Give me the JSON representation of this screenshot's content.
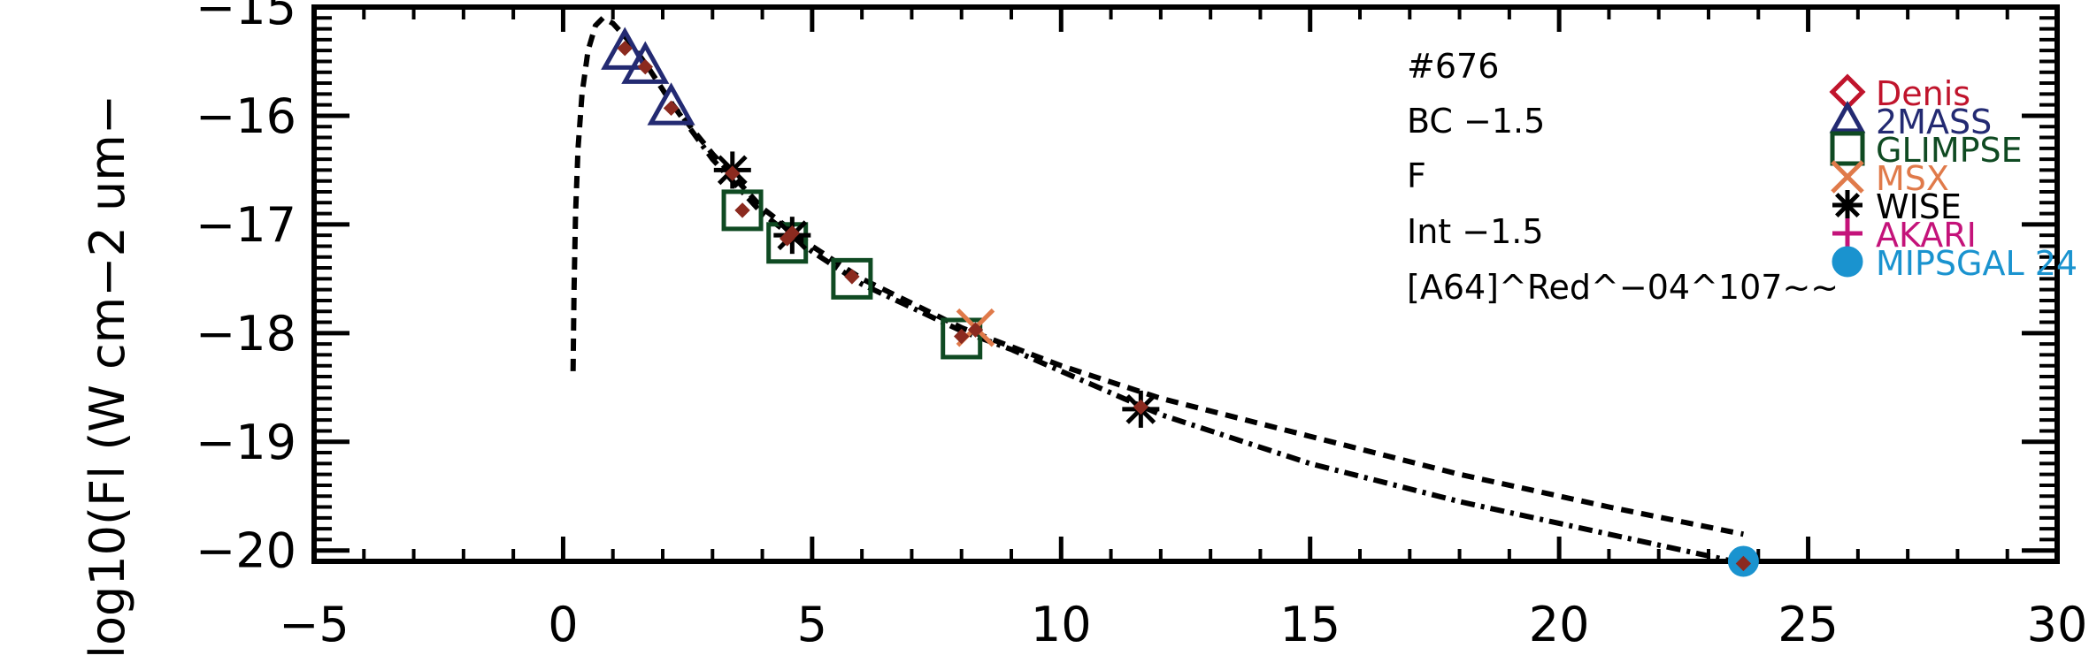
{
  "chart_data": {
    "type": "scatter",
    "title": "",
    "xlabel": "",
    "ylabel": "log10(Fl (W cm−2 um−",
    "xlim": [
      -5,
      30
    ],
    "ylim": [
      -20.1,
      -15.0
    ],
    "x_ticks": [
      -5,
      0,
      5,
      10,
      15,
      20,
      25,
      30
    ],
    "x_tick_labels": [
      "−5",
      "0",
      "5",
      "10",
      "15",
      "20",
      "25",
      "30"
    ],
    "y_ticks": [
      -15,
      -16,
      -17,
      -18,
      -19,
      -20
    ],
    "y_tick_labels": [
      "−15",
      "−16",
      "−17",
      "−18",
      "−19",
      "−20"
    ],
    "grid": false,
    "legend_position": "top-right",
    "annotations": [
      "#676",
      "BC −1.5",
      "F",
      "Int −1.5",
      "[A64]^Red^−04^107~~"
    ],
    "legend": [
      {
        "name": "Denis",
        "marker": "diamond",
        "color": "#c0142c"
      },
      {
        "name": "2MASS",
        "marker": "triangle",
        "color": "#232a72"
      },
      {
        "name": "GLIMPSE",
        "marker": "square",
        "color": "#0f4a22"
      },
      {
        "name": "MSX",
        "marker": "x",
        "color": "#e07a4a"
      },
      {
        "name": "WISE",
        "marker": "asterisk",
        "color": "#000000"
      },
      {
        "name": "AKARI",
        "marker": "plus",
        "color": "#c4137a"
      },
      {
        "name": "MIPSGAL 24",
        "marker": "circle",
        "color": "#1a93cf"
      }
    ],
    "series": [
      {
        "name": "2MASS",
        "marker": "triangle",
        "color": "#232a72",
        "points": [
          [
            1.24,
            -15.42
          ],
          [
            1.65,
            -15.55
          ],
          [
            2.17,
            -15.93
          ]
        ]
      },
      {
        "name": "GLIMPSE",
        "marker": "square",
        "color": "#0f4a22",
        "points": [
          [
            3.6,
            -16.87
          ],
          [
            4.5,
            -17.17
          ],
          [
            5.8,
            -17.5
          ],
          [
            8.0,
            -18.05
          ]
        ]
      },
      {
        "name": "MSX",
        "marker": "x",
        "color": "#e07a4a",
        "points": [
          [
            8.28,
            -17.95
          ]
        ]
      },
      {
        "name": "WISE",
        "marker": "asterisk",
        "color": "#000000",
        "points": [
          [
            3.4,
            -16.5
          ],
          [
            4.6,
            -17.1
          ],
          [
            11.6,
            -18.7
          ]
        ]
      },
      {
        "name": "MIPSGAL 24",
        "marker": "circle",
        "color": "#1a93cf",
        "points": [
          [
            23.7,
            -20.1
          ]
        ]
      },
      {
        "name": "model",
        "marker": "small-diamond",
        "color": "#8b2a1f",
        "points": [
          [
            1.24,
            -15.38
          ],
          [
            1.65,
            -15.55
          ],
          [
            2.17,
            -15.93
          ],
          [
            3.4,
            -16.53
          ],
          [
            3.6,
            -16.87
          ],
          [
            4.5,
            -17.13
          ],
          [
            4.6,
            -17.08
          ],
          [
            5.8,
            -17.48
          ],
          [
            8.0,
            -18.03
          ],
          [
            8.28,
            -17.97
          ],
          [
            11.6,
            -18.68
          ],
          [
            23.7,
            -20.12
          ]
        ]
      }
    ],
    "lines": [
      {
        "style": "dashed",
        "color": "#000000",
        "points": [
          [
            0.2,
            -18.35
          ],
          [
            0.22,
            -17.6
          ],
          [
            0.25,
            -16.9
          ],
          [
            0.3,
            -16.3
          ],
          [
            0.38,
            -15.8
          ],
          [
            0.5,
            -15.4
          ],
          [
            0.65,
            -15.17
          ],
          [
            0.8,
            -15.1
          ],
          [
            1.0,
            -15.15
          ],
          [
            1.3,
            -15.3
          ],
          [
            1.7,
            -15.55
          ],
          [
            2.2,
            -15.9
          ],
          [
            3.0,
            -16.35
          ],
          [
            4.0,
            -16.85
          ],
          [
            5.0,
            -17.2
          ],
          [
            6.0,
            -17.5
          ],
          [
            8.0,
            -17.95
          ],
          [
            10.0,
            -18.3
          ],
          [
            12.0,
            -18.6
          ],
          [
            15.0,
            -18.95
          ],
          [
            18.0,
            -19.3
          ],
          [
            21.0,
            -19.6
          ],
          [
            23.7,
            -19.85
          ]
        ]
      },
      {
        "style": "dashdot",
        "color": "#000000",
        "points": [
          [
            2.2,
            -15.9
          ],
          [
            3.0,
            -16.4
          ],
          [
            4.0,
            -16.9
          ],
          [
            5.0,
            -17.25
          ],
          [
            6.0,
            -17.55
          ],
          [
            8.0,
            -17.98
          ],
          [
            9.0,
            -18.15
          ],
          [
            10.0,
            -18.35
          ],
          [
            12.0,
            -18.75
          ],
          [
            15.0,
            -19.2
          ],
          [
            18.0,
            -19.55
          ],
          [
            21.0,
            -19.85
          ],
          [
            23.7,
            -20.12
          ]
        ]
      }
    ]
  }
}
